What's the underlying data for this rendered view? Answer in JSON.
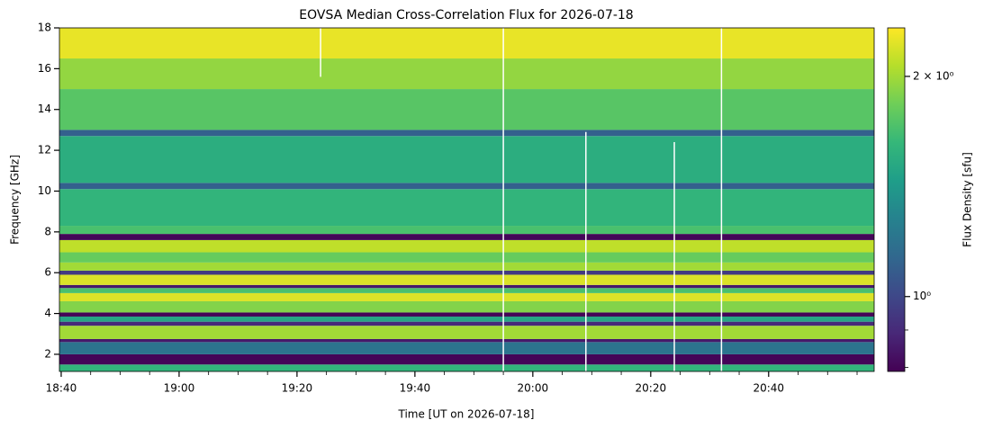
{
  "chart_data": {
    "type": "heatmap",
    "title": "EOVSA Median Cross-Correlation Flux for 2026-07-18",
    "xlabel": "Time [UT on 2026-07-18]",
    "ylabel": "Frequency [GHz]",
    "colorbar_label": "Flux Density [sfu]",
    "colormap": "viridis",
    "color_scale": "log",
    "xlim": [
      "18:39:42",
      "20:57:54"
    ],
    "xticks": [
      "18:40",
      "19:00",
      "19:20",
      "19:40",
      "20:00",
      "20:20",
      "20:40"
    ],
    "xminorticks": [
      "18:45",
      "18:50",
      "18:55",
      "19:05",
      "19:10",
      "19:15",
      "19:25",
      "19:30",
      "19:35",
      "19:45",
      "19:50",
      "19:55",
      "20:05",
      "20:10",
      "20:15",
      "20:25",
      "20:30",
      "20:35",
      "20:45",
      "20:50",
      "20:55"
    ],
    "ylim": [
      1.16,
      18
    ],
    "yticks": [
      2,
      4,
      6,
      8,
      10,
      12,
      14,
      16,
      18
    ],
    "clim": [
      0.79,
      2.33
    ],
    "cticks": [
      {
        "value": 2,
        "label": "2 × 10⁰"
      },
      {
        "value": 1,
        "label": "10⁰"
      }
    ],
    "cminorticks": [
      0.9,
      0.8
    ],
    "y_edges": [
      1.16,
      1.5,
      2.0,
      2.6,
      2.75,
      3.4,
      3.6,
      3.85,
      4.05,
      4.6,
      5.0,
      5.25,
      5.4,
      5.9,
      6.1,
      6.5,
      7.0,
      7.6,
      7.9,
      8.3,
      10.1,
      10.4,
      12.7,
      13.0,
      15,
      16.5,
      18
    ],
    "values": [
      1.6,
      0.8,
      1.2,
      0.85,
      2.0,
      0.9,
      1.5,
      0.8,
      1.9,
      2.2,
      1.7,
      0.85,
      2.2,
      0.95,
      2.0,
      1.8,
      2.1,
      0.8,
      1.7,
      1.6,
      1.1,
      1.55,
      1.1,
      1.75,
      1.95,
      2.25
    ],
    "gaps": [
      {
        "time": "19:24",
        "range": [
          15.6,
          18
        ]
      },
      {
        "time": "19:55",
        "range": [
          1.16,
          18
        ]
      },
      {
        "time": "20:09",
        "range": [
          1.16,
          12.9
        ]
      },
      {
        "time": "20:24",
        "range": [
          1.16,
          12.4
        ]
      },
      {
        "time": "20:32",
        "range": [
          1.16,
          18
        ]
      }
    ]
  }
}
